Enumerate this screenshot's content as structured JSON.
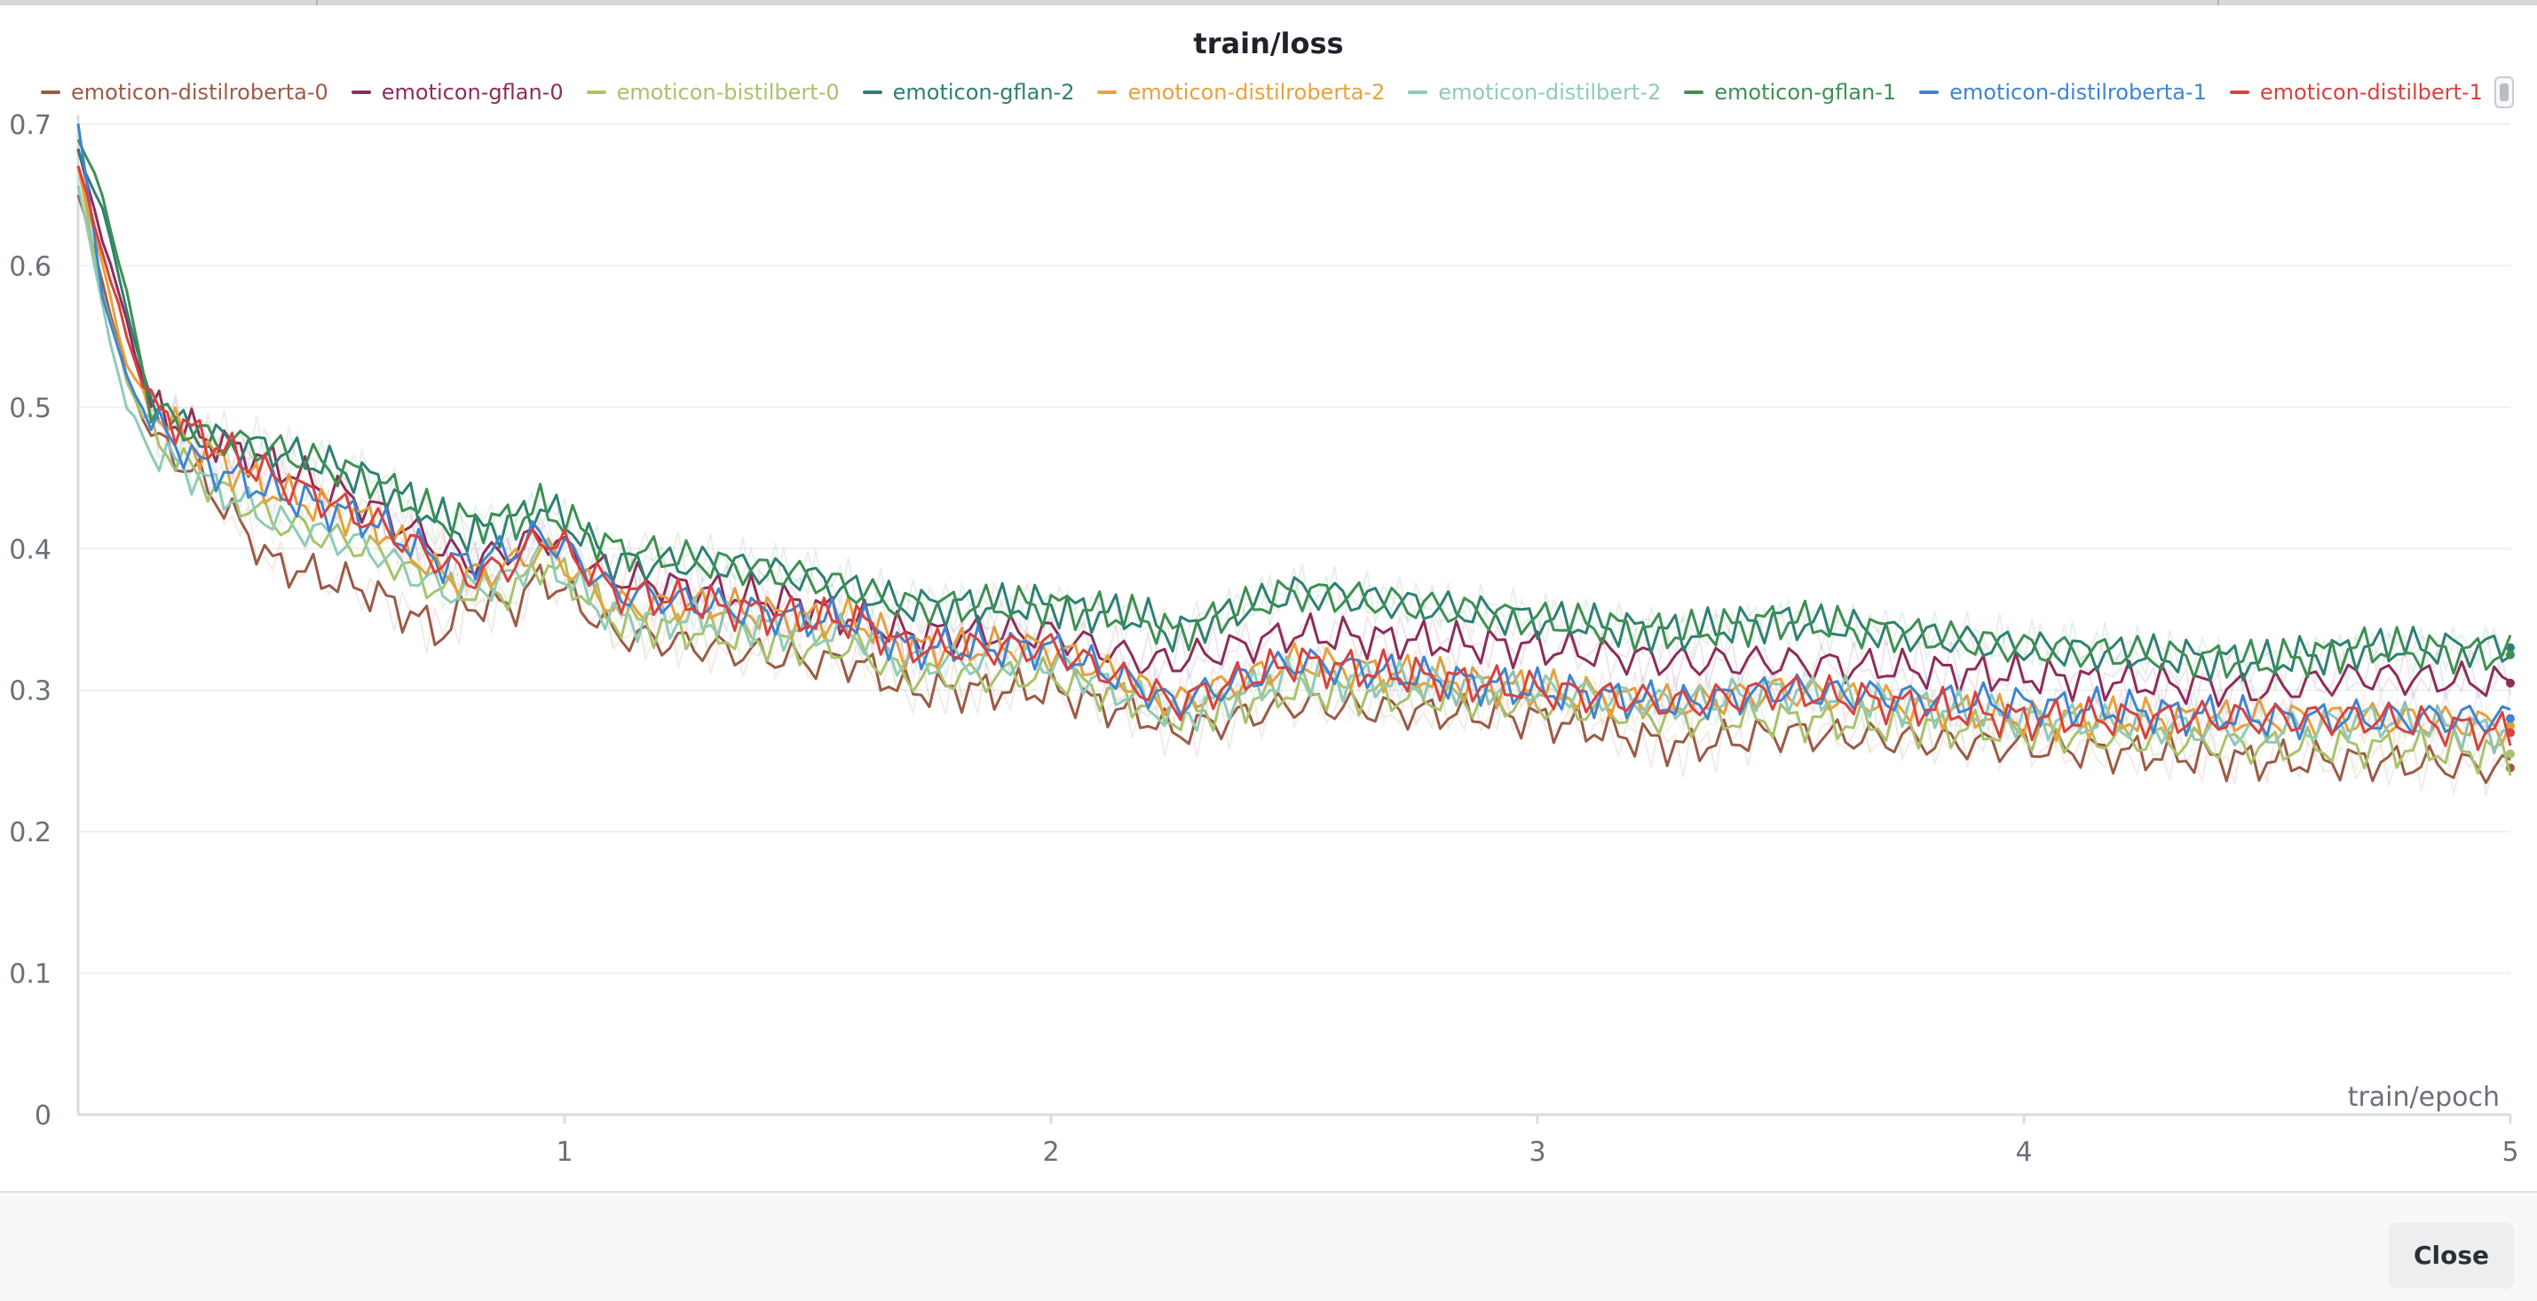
{
  "chart_data": {
    "type": "line",
    "title": "train/loss",
    "xlabel": "train/epoch",
    "ylabel": "",
    "xlim": [
      0,
      5
    ],
    "ylim": [
      0,
      0.7
    ],
    "x_ticks": [
      "1",
      "2",
      "3",
      "4",
      "5"
    ],
    "y_ticks": [
      "0",
      "0.1",
      "0.2",
      "0.3",
      "0.4",
      "0.5",
      "0.6",
      "0.7"
    ],
    "grid": true,
    "legend_position": "top",
    "series": [
      {
        "name": "emoticon-distilroberta-0",
        "color": "#9a5b47",
        "points": [
          [
            0,
            0.65
          ],
          [
            0.05,
            0.59
          ],
          [
            0.1,
            0.52
          ],
          [
            0.15,
            0.48
          ],
          [
            0.25,
            0.45
          ],
          [
            0.4,
            0.39
          ],
          [
            0.6,
            0.37
          ],
          [
            0.75,
            0.34
          ],
          [
            0.8,
            0.36
          ],
          [
            0.9,
            0.36
          ],
          [
            0.95,
            0.38
          ],
          [
            1.0,
            0.37
          ],
          [
            1.1,
            0.34
          ],
          [
            1.3,
            0.33
          ],
          [
            1.5,
            0.32
          ],
          [
            1.6,
            0.32
          ],
          [
            1.7,
            0.3
          ],
          [
            2.0,
            0.3
          ],
          [
            2.2,
            0.28
          ],
          [
            2.25,
            0.27
          ],
          [
            2.5,
            0.29
          ],
          [
            3.0,
            0.28
          ],
          [
            3.3,
            0.26
          ],
          [
            3.5,
            0.27
          ],
          [
            4.0,
            0.26
          ],
          [
            4.5,
            0.25
          ],
          [
            4.7,
            0.25
          ],
          [
            5.0,
            0.245
          ]
        ]
      },
      {
        "name": "emoticon-gflan-0",
        "color": "#8e2c5a",
        "points": [
          [
            0,
            0.68
          ],
          [
            0.05,
            0.62
          ],
          [
            0.1,
            0.56
          ],
          [
            0.15,
            0.5
          ],
          [
            0.25,
            0.48
          ],
          [
            0.4,
            0.46
          ],
          [
            0.6,
            0.43
          ],
          [
            0.75,
            0.4
          ],
          [
            0.8,
            0.39
          ],
          [
            0.9,
            0.4
          ],
          [
            0.95,
            0.41
          ],
          [
            1.0,
            0.4
          ],
          [
            1.1,
            0.38
          ],
          [
            1.3,
            0.37
          ],
          [
            1.5,
            0.36
          ],
          [
            1.6,
            0.35
          ],
          [
            1.7,
            0.34
          ],
          [
            2.0,
            0.34
          ],
          [
            2.2,
            0.32
          ],
          [
            2.25,
            0.32
          ],
          [
            2.5,
            0.34
          ],
          [
            3.0,
            0.33
          ],
          [
            3.3,
            0.32
          ],
          [
            3.5,
            0.32
          ],
          [
            4.0,
            0.31
          ],
          [
            4.5,
            0.3
          ],
          [
            4.7,
            0.31
          ],
          [
            5.0,
            0.305
          ]
        ]
      },
      {
        "name": "emoticon-bistilbert-0",
        "color": "#a9c26b",
        "points": [
          [
            0,
            0.67
          ],
          [
            0.05,
            0.58
          ],
          [
            0.1,
            0.52
          ],
          [
            0.15,
            0.48
          ],
          [
            0.25,
            0.45
          ],
          [
            0.4,
            0.42
          ],
          [
            0.6,
            0.4
          ],
          [
            0.75,
            0.37
          ],
          [
            0.8,
            0.37
          ],
          [
            0.9,
            0.37
          ],
          [
            0.95,
            0.39
          ],
          [
            1.0,
            0.38
          ],
          [
            1.1,
            0.35
          ],
          [
            1.3,
            0.34
          ],
          [
            1.5,
            0.33
          ],
          [
            1.6,
            0.33
          ],
          [
            1.7,
            0.31
          ],
          [
            2.0,
            0.31
          ],
          [
            2.2,
            0.29
          ],
          [
            2.25,
            0.28
          ],
          [
            2.5,
            0.3
          ],
          [
            3.0,
            0.29
          ],
          [
            3.3,
            0.28
          ],
          [
            3.5,
            0.28
          ],
          [
            4.0,
            0.27
          ],
          [
            4.5,
            0.26
          ],
          [
            4.7,
            0.26
          ],
          [
            5.0,
            0.255
          ]
        ]
      },
      {
        "name": "emoticon-gflan-2",
        "color": "#2e8072",
        "points": [
          [
            0,
            0.68
          ],
          [
            0.05,
            0.64
          ],
          [
            0.1,
            0.57
          ],
          [
            0.15,
            0.5
          ],
          [
            0.25,
            0.48
          ],
          [
            0.4,
            0.47
          ],
          [
            0.6,
            0.45
          ],
          [
            0.75,
            0.42
          ],
          [
            0.8,
            0.41
          ],
          [
            0.9,
            0.42
          ],
          [
            0.95,
            0.43
          ],
          [
            1.0,
            0.42
          ],
          [
            1.1,
            0.39
          ],
          [
            1.3,
            0.39
          ],
          [
            1.5,
            0.38
          ],
          [
            1.6,
            0.37
          ],
          [
            1.7,
            0.36
          ],
          [
            2.0,
            0.36
          ],
          [
            2.2,
            0.35
          ],
          [
            2.25,
            0.34
          ],
          [
            2.5,
            0.37
          ],
          [
            3.0,
            0.35
          ],
          [
            3.3,
            0.34
          ],
          [
            3.5,
            0.35
          ],
          [
            4.0,
            0.33
          ],
          [
            4.5,
            0.32
          ],
          [
            4.7,
            0.33
          ],
          [
            5.0,
            0.33
          ]
        ]
      },
      {
        "name": "emoticon-distilroberta-2",
        "color": "#e8a13a",
        "points": [
          [
            0,
            0.67
          ],
          [
            0.05,
            0.6
          ],
          [
            0.1,
            0.53
          ],
          [
            0.15,
            0.5
          ],
          [
            0.25,
            0.47
          ],
          [
            0.4,
            0.44
          ],
          [
            0.6,
            0.42
          ],
          [
            0.75,
            0.38
          ],
          [
            0.8,
            0.38
          ],
          [
            0.9,
            0.39
          ],
          [
            0.95,
            0.4
          ],
          [
            1.0,
            0.39
          ],
          [
            1.1,
            0.36
          ],
          [
            1.3,
            0.36
          ],
          [
            1.5,
            0.35
          ],
          [
            1.6,
            0.35
          ],
          [
            1.7,
            0.33
          ],
          [
            2.0,
            0.33
          ],
          [
            2.2,
            0.3
          ],
          [
            2.25,
            0.29
          ],
          [
            2.5,
            0.32
          ],
          [
            3.0,
            0.3
          ],
          [
            3.3,
            0.29
          ],
          [
            3.5,
            0.3
          ],
          [
            4.0,
            0.28
          ],
          [
            4.5,
            0.28
          ],
          [
            4.7,
            0.28
          ],
          [
            5.0,
            0.275
          ]
        ]
      },
      {
        "name": "emoticon-distilbert-2",
        "color": "#8fcbb9",
        "points": [
          [
            0,
            0.66
          ],
          [
            0.05,
            0.57
          ],
          [
            0.1,
            0.5
          ],
          [
            0.15,
            0.47
          ],
          [
            0.25,
            0.45
          ],
          [
            0.4,
            0.42
          ],
          [
            0.6,
            0.4
          ],
          [
            0.75,
            0.37
          ],
          [
            0.8,
            0.37
          ],
          [
            0.9,
            0.38
          ],
          [
            0.95,
            0.4
          ],
          [
            1.0,
            0.38
          ],
          [
            1.1,
            0.35
          ],
          [
            1.3,
            0.35
          ],
          [
            1.5,
            0.34
          ],
          [
            1.6,
            0.34
          ],
          [
            1.7,
            0.32
          ],
          [
            2.0,
            0.32
          ],
          [
            2.2,
            0.29
          ],
          [
            2.25,
            0.28
          ],
          [
            2.5,
            0.31
          ],
          [
            3.0,
            0.3
          ],
          [
            3.3,
            0.29
          ],
          [
            3.5,
            0.3
          ],
          [
            4.0,
            0.28
          ],
          [
            4.5,
            0.27
          ],
          [
            4.7,
            0.28
          ],
          [
            5.0,
            0.27
          ]
        ]
      },
      {
        "name": "emoticon-gflan-1",
        "color": "#3f8f52",
        "points": [
          [
            0,
            0.69
          ],
          [
            0.05,
            0.65
          ],
          [
            0.1,
            0.58
          ],
          [
            0.15,
            0.5
          ],
          [
            0.25,
            0.48
          ],
          [
            0.4,
            0.47
          ],
          [
            0.6,
            0.45
          ],
          [
            0.75,
            0.42
          ],
          [
            0.8,
            0.42
          ],
          [
            0.9,
            0.42
          ],
          [
            0.95,
            0.43
          ],
          [
            1.0,
            0.42
          ],
          [
            1.1,
            0.4
          ],
          [
            1.3,
            0.39
          ],
          [
            1.5,
            0.38
          ],
          [
            1.6,
            0.37
          ],
          [
            1.7,
            0.36
          ],
          [
            2.0,
            0.36
          ],
          [
            2.2,
            0.35
          ],
          [
            2.25,
            0.34
          ],
          [
            2.5,
            0.37
          ],
          [
            3.0,
            0.35
          ],
          [
            3.3,
            0.34
          ],
          [
            3.5,
            0.35
          ],
          [
            4.0,
            0.33
          ],
          [
            4.5,
            0.32
          ],
          [
            4.7,
            0.33
          ],
          [
            5.0,
            0.325
          ]
        ]
      },
      {
        "name": "emoticon-distilroberta-1",
        "color": "#3e84d4",
        "points": [
          [
            0,
            0.7
          ],
          [
            0.05,
            0.58
          ],
          [
            0.1,
            0.52
          ],
          [
            0.15,
            0.49
          ],
          [
            0.25,
            0.46
          ],
          [
            0.4,
            0.44
          ],
          [
            0.6,
            0.42
          ],
          [
            0.75,
            0.39
          ],
          [
            0.8,
            0.39
          ],
          [
            0.9,
            0.4
          ],
          [
            0.95,
            0.41
          ],
          [
            1.0,
            0.4
          ],
          [
            1.1,
            0.37
          ],
          [
            1.3,
            0.36
          ],
          [
            1.5,
            0.35
          ],
          [
            1.6,
            0.35
          ],
          [
            1.7,
            0.33
          ],
          [
            2.0,
            0.33
          ],
          [
            2.2,
            0.3
          ],
          [
            2.25,
            0.29
          ],
          [
            2.5,
            0.32
          ],
          [
            3.0,
            0.3
          ],
          [
            3.3,
            0.29
          ],
          [
            3.5,
            0.3
          ],
          [
            4.0,
            0.29
          ],
          [
            4.5,
            0.28
          ],
          [
            4.7,
            0.28
          ],
          [
            5.0,
            0.28
          ]
        ]
      },
      {
        "name": "emoticon-distilbert-1",
        "color": "#d8423f",
        "points": [
          [
            0,
            0.67
          ],
          [
            0.05,
            0.61
          ],
          [
            0.1,
            0.55
          ],
          [
            0.15,
            0.5
          ],
          [
            0.25,
            0.48
          ],
          [
            0.4,
            0.45
          ],
          [
            0.6,
            0.42
          ],
          [
            0.75,
            0.39
          ],
          [
            0.8,
            0.38
          ],
          [
            0.9,
            0.39
          ],
          [
            0.95,
            0.41
          ],
          [
            1.0,
            0.4
          ],
          [
            1.1,
            0.37
          ],
          [
            1.3,
            0.36
          ],
          [
            1.5,
            0.35
          ],
          [
            1.6,
            0.35
          ],
          [
            1.7,
            0.33
          ],
          [
            2.0,
            0.33
          ],
          [
            2.2,
            0.3
          ],
          [
            2.25,
            0.29
          ],
          [
            2.5,
            0.32
          ],
          [
            3.0,
            0.3
          ],
          [
            3.3,
            0.29
          ],
          [
            3.5,
            0.3
          ],
          [
            4.0,
            0.28
          ],
          [
            4.5,
            0.28
          ],
          [
            4.7,
            0.28
          ],
          [
            5.0,
            0.27
          ]
        ]
      }
    ]
  },
  "footer": {
    "close_label": "Close"
  }
}
